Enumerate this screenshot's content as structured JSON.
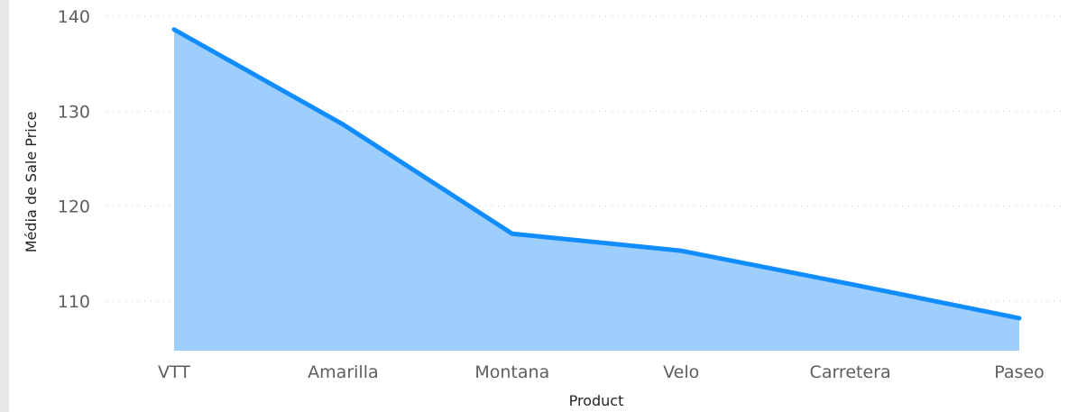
{
  "chart_data": {
    "type": "area",
    "title": "",
    "xlabel": "Product",
    "ylabel": "Média de Sale Price",
    "categories": [
      "VTT",
      "Amarilla",
      "Montana",
      "Velo",
      "Carretera",
      "Paseo"
    ],
    "series": [
      {
        "values": [
          138.6,
          128.6,
          117.1,
          115.3,
          111.8,
          108.2
        ]
      }
    ],
    "ylim": [
      104.8,
      142
    ],
    "yticks": [
      110,
      120,
      130,
      140
    ],
    "grid": true,
    "line_color": "#118DFF",
    "fill_color": "#9ECFFC"
  }
}
